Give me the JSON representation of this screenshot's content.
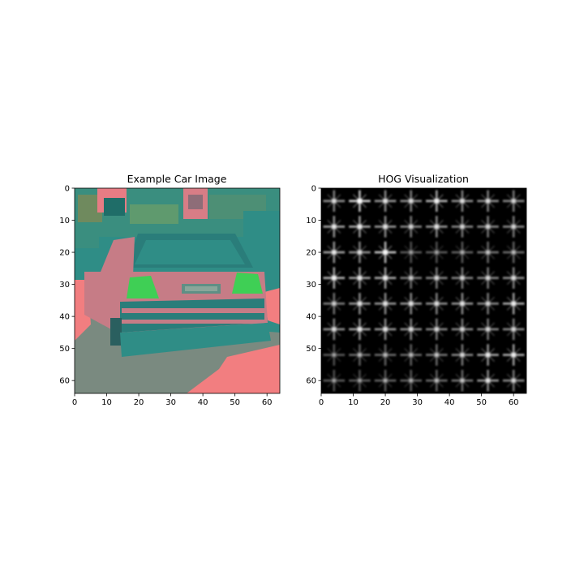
{
  "figure": {
    "background": "#ffffff"
  },
  "chart_data": [
    {
      "type": "image",
      "title": "Example Car Image",
      "xlim": [
        0,
        64
      ],
      "ylim": [
        64,
        0
      ],
      "xticks": [
        0,
        10,
        20,
        30,
        40,
        50,
        60
      ],
      "yticks": [
        0,
        10,
        20,
        30,
        40,
        50,
        60
      ],
      "xtick_labels": [
        "0",
        "10",
        "20",
        "30",
        "40",
        "50",
        "60"
      ],
      "ytick_labels": [
        "0",
        "10",
        "20",
        "30",
        "40",
        "50",
        "60"
      ],
      "grid": false,
      "colors": {
        "background": "#2f8d86",
        "road": "#7a8a80",
        "car_body": "#c67c86",
        "salmon": "#f27e80",
        "green": "#3fcf55",
        "dark_teal": "#1f6d68"
      }
    },
    {
      "type": "heatmap",
      "title": "HOG Visualization",
      "xlim": [
        0,
        64
      ],
      "ylim": [
        64,
        0
      ],
      "xticks": [
        0,
        10,
        20,
        30,
        40,
        50,
        60
      ],
      "yticks": [
        0,
        10,
        20,
        30,
        40,
        50,
        60
      ],
      "xtick_labels": [
        "0",
        "10",
        "20",
        "30",
        "40",
        "50",
        "60"
      ],
      "ytick_labels": [
        "0",
        "10",
        "20",
        "30",
        "40",
        "50",
        "60"
      ],
      "grid": false,
      "colors": {
        "background": "#000000",
        "strokes": "#ffffff"
      },
      "cells_grid": [
        8,
        8
      ],
      "cells": [
        [
          0.5,
          0.9,
          0.55,
          0.5,
          0.7,
          0.5,
          0.5,
          0.45
        ],
        [
          0.6,
          0.65,
          0.55,
          0.45,
          0.55,
          0.45,
          0.45,
          0.45
        ],
        [
          0.6,
          0.5,
          0.8,
          0.2,
          0.2,
          0.25,
          0.35,
          0.3
        ],
        [
          0.7,
          0.6,
          0.65,
          0.4,
          0.45,
          0.45,
          0.45,
          0.5
        ],
        [
          0.4,
          0.55,
          0.55,
          0.55,
          0.5,
          0.55,
          0.45,
          0.65
        ],
        [
          0.5,
          0.6,
          0.55,
          0.5,
          0.45,
          0.45,
          0.45,
          0.45
        ],
        [
          0.2,
          0.3,
          0.3,
          0.3,
          0.35,
          0.45,
          0.6,
          0.65
        ],
        [
          0.2,
          0.2,
          0.25,
          0.25,
          0.3,
          0.35,
          0.55,
          0.45
        ]
      ]
    }
  ]
}
